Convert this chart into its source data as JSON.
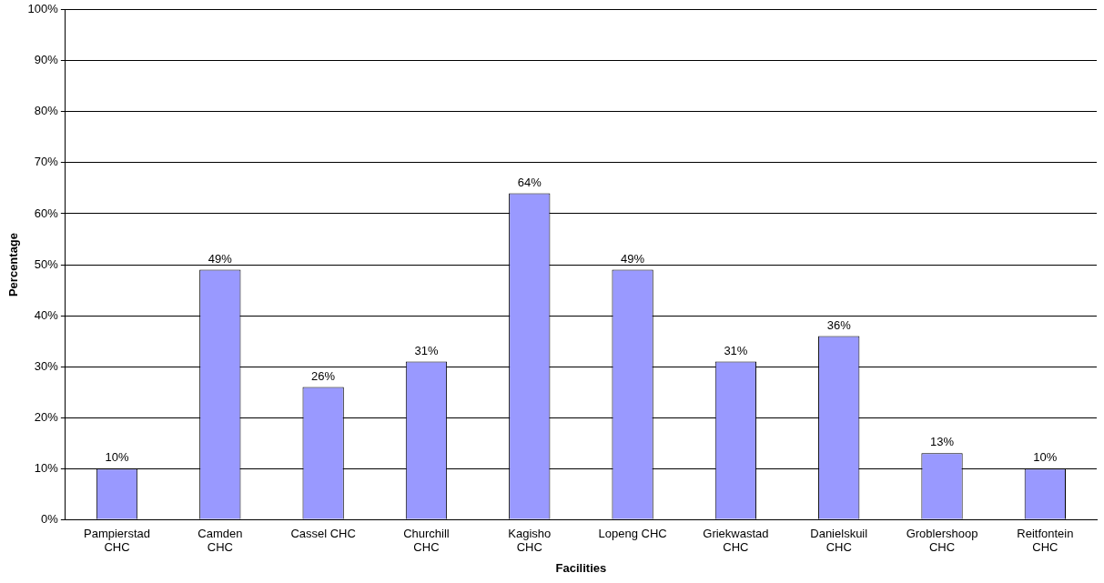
{
  "chart_data": {
    "type": "bar",
    "xlabel": "Facilities",
    "ylabel": "Percentage",
    "categories": [
      "Pampierstad CHC",
      "Camden CHC",
      "Cassel CHC",
      "Churchill CHC",
      "Kagisho CHC",
      "Lopeng CHC",
      "Griekwastad CHC",
      "Danielskuil CHC",
      "Groblershoop CHC",
      "Reitfontein CHC"
    ],
    "values": [
      10,
      49,
      26,
      31,
      64,
      49,
      31,
      36,
      13,
      10
    ],
    "value_labels": [
      "10%",
      "49%",
      "26%",
      "31%",
      "64%",
      "49%",
      "31%",
      "36%",
      "13%",
      "10%"
    ],
    "color": "#9999ff",
    "ylim": [
      0,
      100
    ],
    "yticks": [
      {
        "value": 0,
        "label": "0%"
      },
      {
        "value": 10,
        "label": "10%"
      },
      {
        "value": 20,
        "label": "20%"
      },
      {
        "value": 30,
        "label": "30%"
      },
      {
        "value": 40,
        "label": "40%"
      },
      {
        "value": 50,
        "label": "50%"
      },
      {
        "value": 60,
        "label": "60%"
      },
      {
        "value": 70,
        "label": "70%"
      },
      {
        "value": 80,
        "label": "80%"
      },
      {
        "value": 90,
        "label": "90%"
      },
      {
        "value": 100,
        "label": "100%"
      }
    ],
    "grid": "y",
    "legend": false
  }
}
